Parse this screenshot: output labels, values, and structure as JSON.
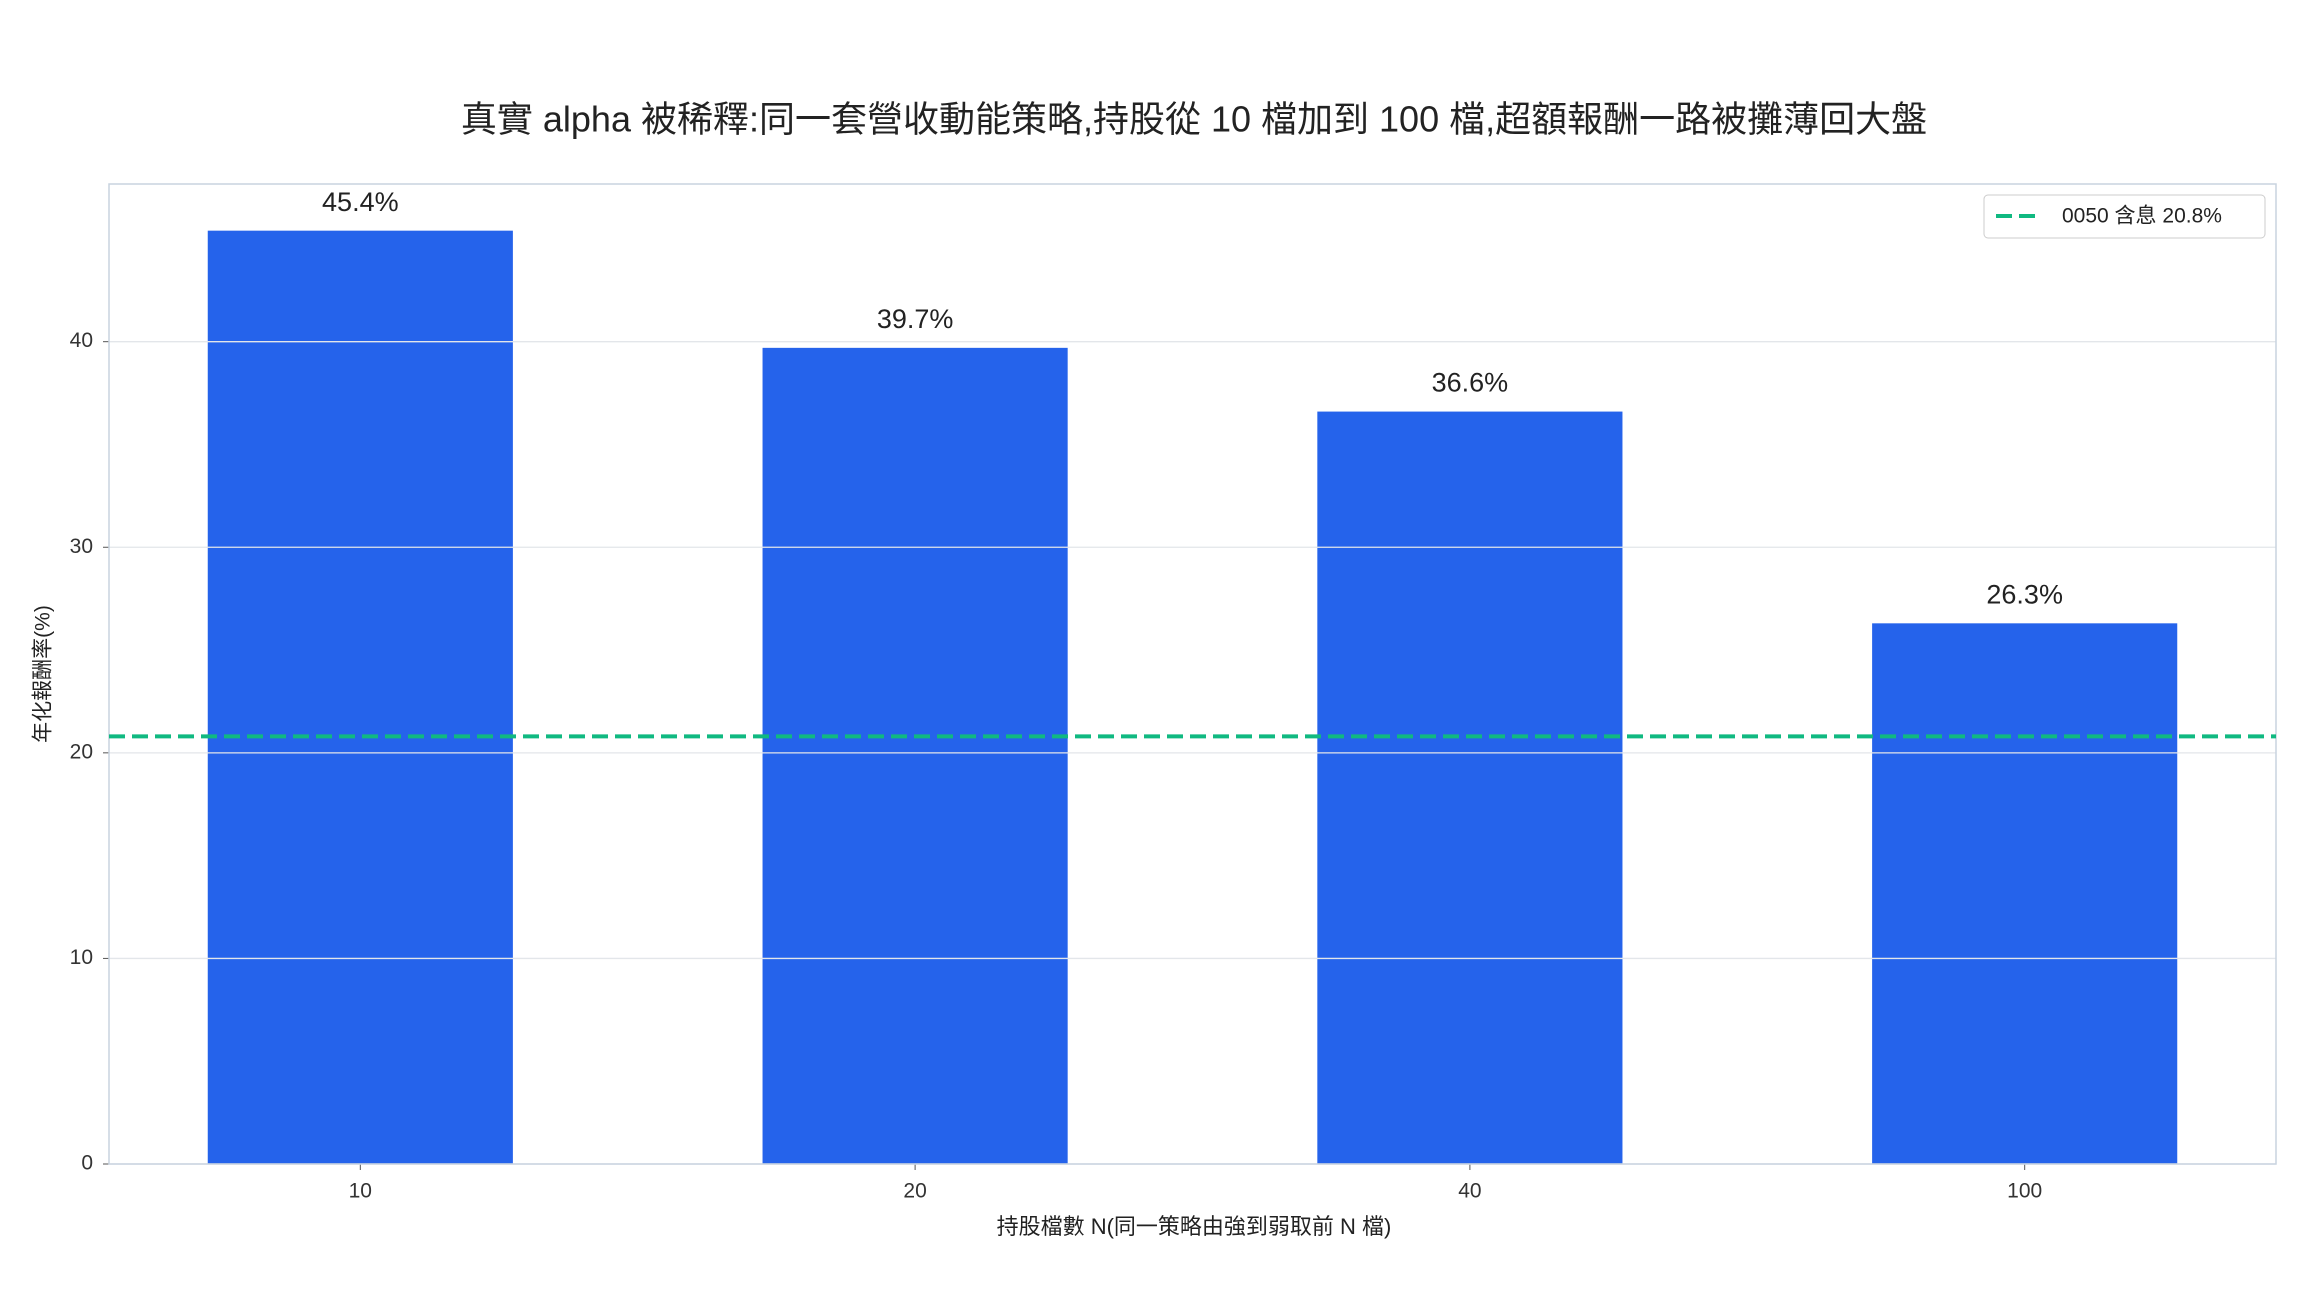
{
  "chart_data": {
    "type": "bar",
    "title": "真實 alpha 被稀釋:同一套營收動能策略,持股從 10 檔加到 100 檔,超額報酬一路被攤薄回大盤",
    "x_label": "持股檔數 N(同一策略由強到弱取前 N 檔)",
    "y_label": "年化報酬率(%)",
    "categories": [
      "10",
      "20",
      "40",
      "100"
    ],
    "values": [
      45.4,
      39.7,
      36.6,
      26.3
    ],
    "value_labels": [
      "45.4%",
      "39.7%",
      "36.6%",
      "26.3%"
    ],
    "color": "#2563eb",
    "ylim": [
      0,
      47.67
    ],
    "yticks": [
      0,
      10,
      20,
      30,
      40
    ],
    "grid": true,
    "reference_line": {
      "value": 20.8,
      "label": "0050 含息 20.8%",
      "color": "#10b981"
    },
    "legend": "upper right"
  }
}
